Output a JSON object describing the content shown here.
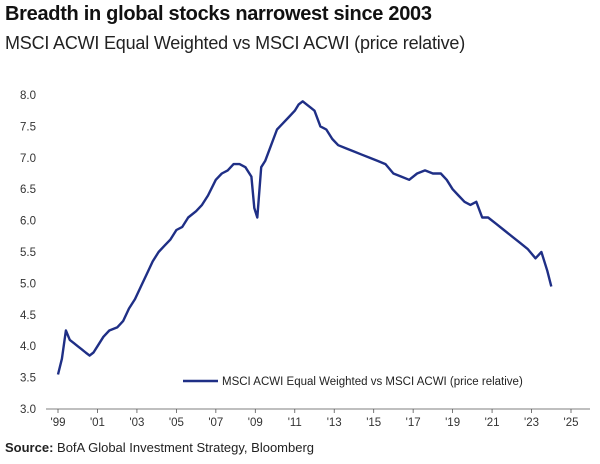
{
  "title": "Breadth in global stocks narrowest since 2003",
  "subtitle": "MSCI ACWI Equal Weighted vs MSCI ACWI (price relative)",
  "source": {
    "label": "Source:",
    "text": " BofA Global Investment Strategy, Bloomberg"
  },
  "chart_data": {
    "type": "line",
    "ylim": [
      3.0,
      8.0
    ],
    "yticks": [
      "8.0",
      "7.5",
      "7.0",
      "6.5",
      "6.0",
      "5.5",
      "5.0",
      "4.5",
      "4.0",
      "3.5",
      "3.0"
    ],
    "xticks": [
      "'99",
      "'01",
      "'03",
      "'05",
      "'07",
      "'09",
      "'11",
      "'13",
      "'15",
      "'17",
      "'19",
      "'21",
      "'23",
      "'25"
    ],
    "xlim": [
      1999,
      2025
    ],
    "grid": false,
    "legend_position": "bottom-right",
    "line_color": "#1f2f86",
    "series": [
      {
        "name": "MSCI ACWI Equal Weighted vs MSCI ACWI (price relative)",
        "x": [
          1999.0,
          1999.2,
          1999.4,
          1999.6,
          1999.8,
          2000.0,
          2000.2,
          2000.4,
          2000.6,
          2000.8,
          2001.0,
          2001.3,
          2001.6,
          2002.0,
          2002.3,
          2002.6,
          2002.9,
          2003.2,
          2003.5,
          2003.8,
          2004.1,
          2004.4,
          2004.7,
          2005.0,
          2005.3,
          2005.6,
          2006.0,
          2006.3,
          2006.6,
          2007.0,
          2007.3,
          2007.6,
          2007.9,
          2008.2,
          2008.5,
          2008.8,
          2008.95,
          2009.1,
          2009.3,
          2009.5,
          2009.8,
          2010.1,
          2010.4,
          2010.7,
          2011.0,
          2011.2,
          2011.4,
          2011.6,
          2011.8,
          2012.0,
          2012.3,
          2012.6,
          2012.9,
          2013.2,
          2013.6,
          2014.0,
          2014.4,
          2014.8,
          2015.2,
          2015.6,
          2016.0,
          2016.4,
          2016.8,
          2017.2,
          2017.6,
          2018.0,
          2018.4,
          2018.7,
          2019.0,
          2019.3,
          2019.6,
          2019.9,
          2020.2,
          2020.5,
          2020.8,
          2021.2,
          2021.6,
          2022.0,
          2022.4,
          2022.8,
          2023.2,
          2023.5,
          2023.8,
          2024.0
        ],
        "values": [
          3.55,
          3.8,
          4.25,
          4.1,
          4.05,
          4.0,
          3.95,
          3.9,
          3.85,
          3.9,
          4.0,
          4.15,
          4.25,
          4.3,
          4.4,
          4.6,
          4.75,
          4.95,
          5.15,
          5.35,
          5.5,
          5.6,
          5.7,
          5.85,
          5.9,
          6.05,
          6.15,
          6.25,
          6.4,
          6.65,
          6.75,
          6.8,
          6.9,
          6.9,
          6.85,
          6.7,
          6.2,
          6.05,
          6.85,
          6.95,
          7.2,
          7.45,
          7.55,
          7.65,
          7.75,
          7.85,
          7.9,
          7.85,
          7.8,
          7.75,
          7.5,
          7.45,
          7.3,
          7.2,
          7.15,
          7.1,
          7.05,
          7.0,
          6.95,
          6.9,
          6.75,
          6.7,
          6.65,
          6.75,
          6.8,
          6.75,
          6.75,
          6.65,
          6.5,
          6.4,
          6.3,
          6.25,
          6.3,
          6.05,
          6.05,
          5.95,
          5.85,
          5.75,
          5.65,
          5.55,
          5.4,
          5.5,
          5.2,
          4.95
        ]
      }
    ]
  }
}
